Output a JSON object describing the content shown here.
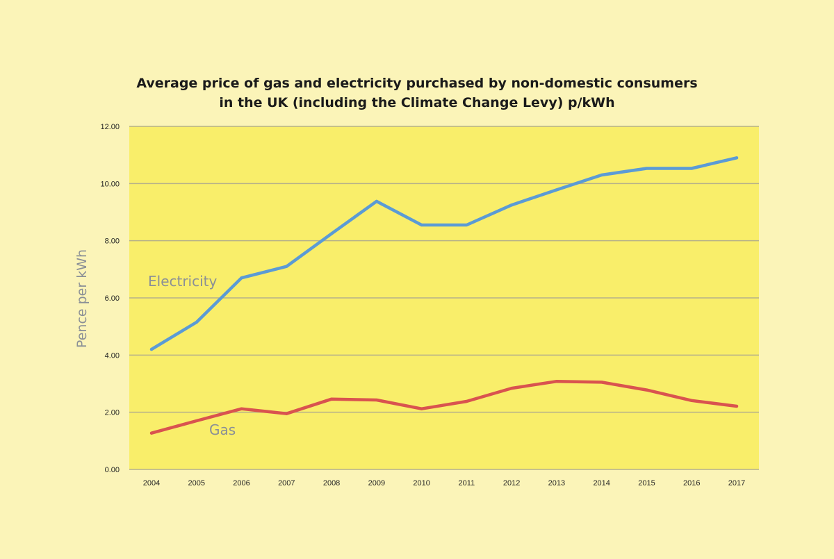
{
  "chart_data": {
    "type": "line",
    "title_lines": [
      "Average price of gas and electricity purchased by non-domestic consumers",
      "in the UK (including the Climate Change Levy) p/kWh"
    ],
    "xlabel": "",
    "ylabel": "Pence per kWh",
    "x": [
      "2004",
      "2005",
      "2006",
      "2007",
      "2008",
      "2009",
      "2010",
      "2011",
      "2012",
      "2013",
      "2014",
      "2015",
      "2016",
      "2017"
    ],
    "ylim": [
      0,
      12
    ],
    "yticks": [
      "0.00",
      "2.00",
      "4.00",
      "6.00",
      "8.00",
      "10.00",
      "12.00"
    ],
    "grid": true,
    "legend": "inline labels",
    "series": [
      {
        "name": "Electricity",
        "color": "#5b9bd5",
        "values": [
          4.2,
          5.15,
          6.7,
          7.1,
          8.25,
          9.38,
          8.55,
          8.55,
          9.25,
          9.78,
          10.3,
          10.53,
          10.53,
          10.9
        ]
      },
      {
        "name": "Gas",
        "color": "#d9534f",
        "values": [
          1.27,
          1.7,
          2.12,
          1.95,
          2.46,
          2.43,
          2.12,
          2.38,
          2.84,
          3.08,
          3.05,
          2.78,
          2.41,
          2.21
        ]
      }
    ],
    "plot_background": "#f9ee6a",
    "page_background": "#fbf4b8",
    "gridline_color": "#b5b08a"
  }
}
